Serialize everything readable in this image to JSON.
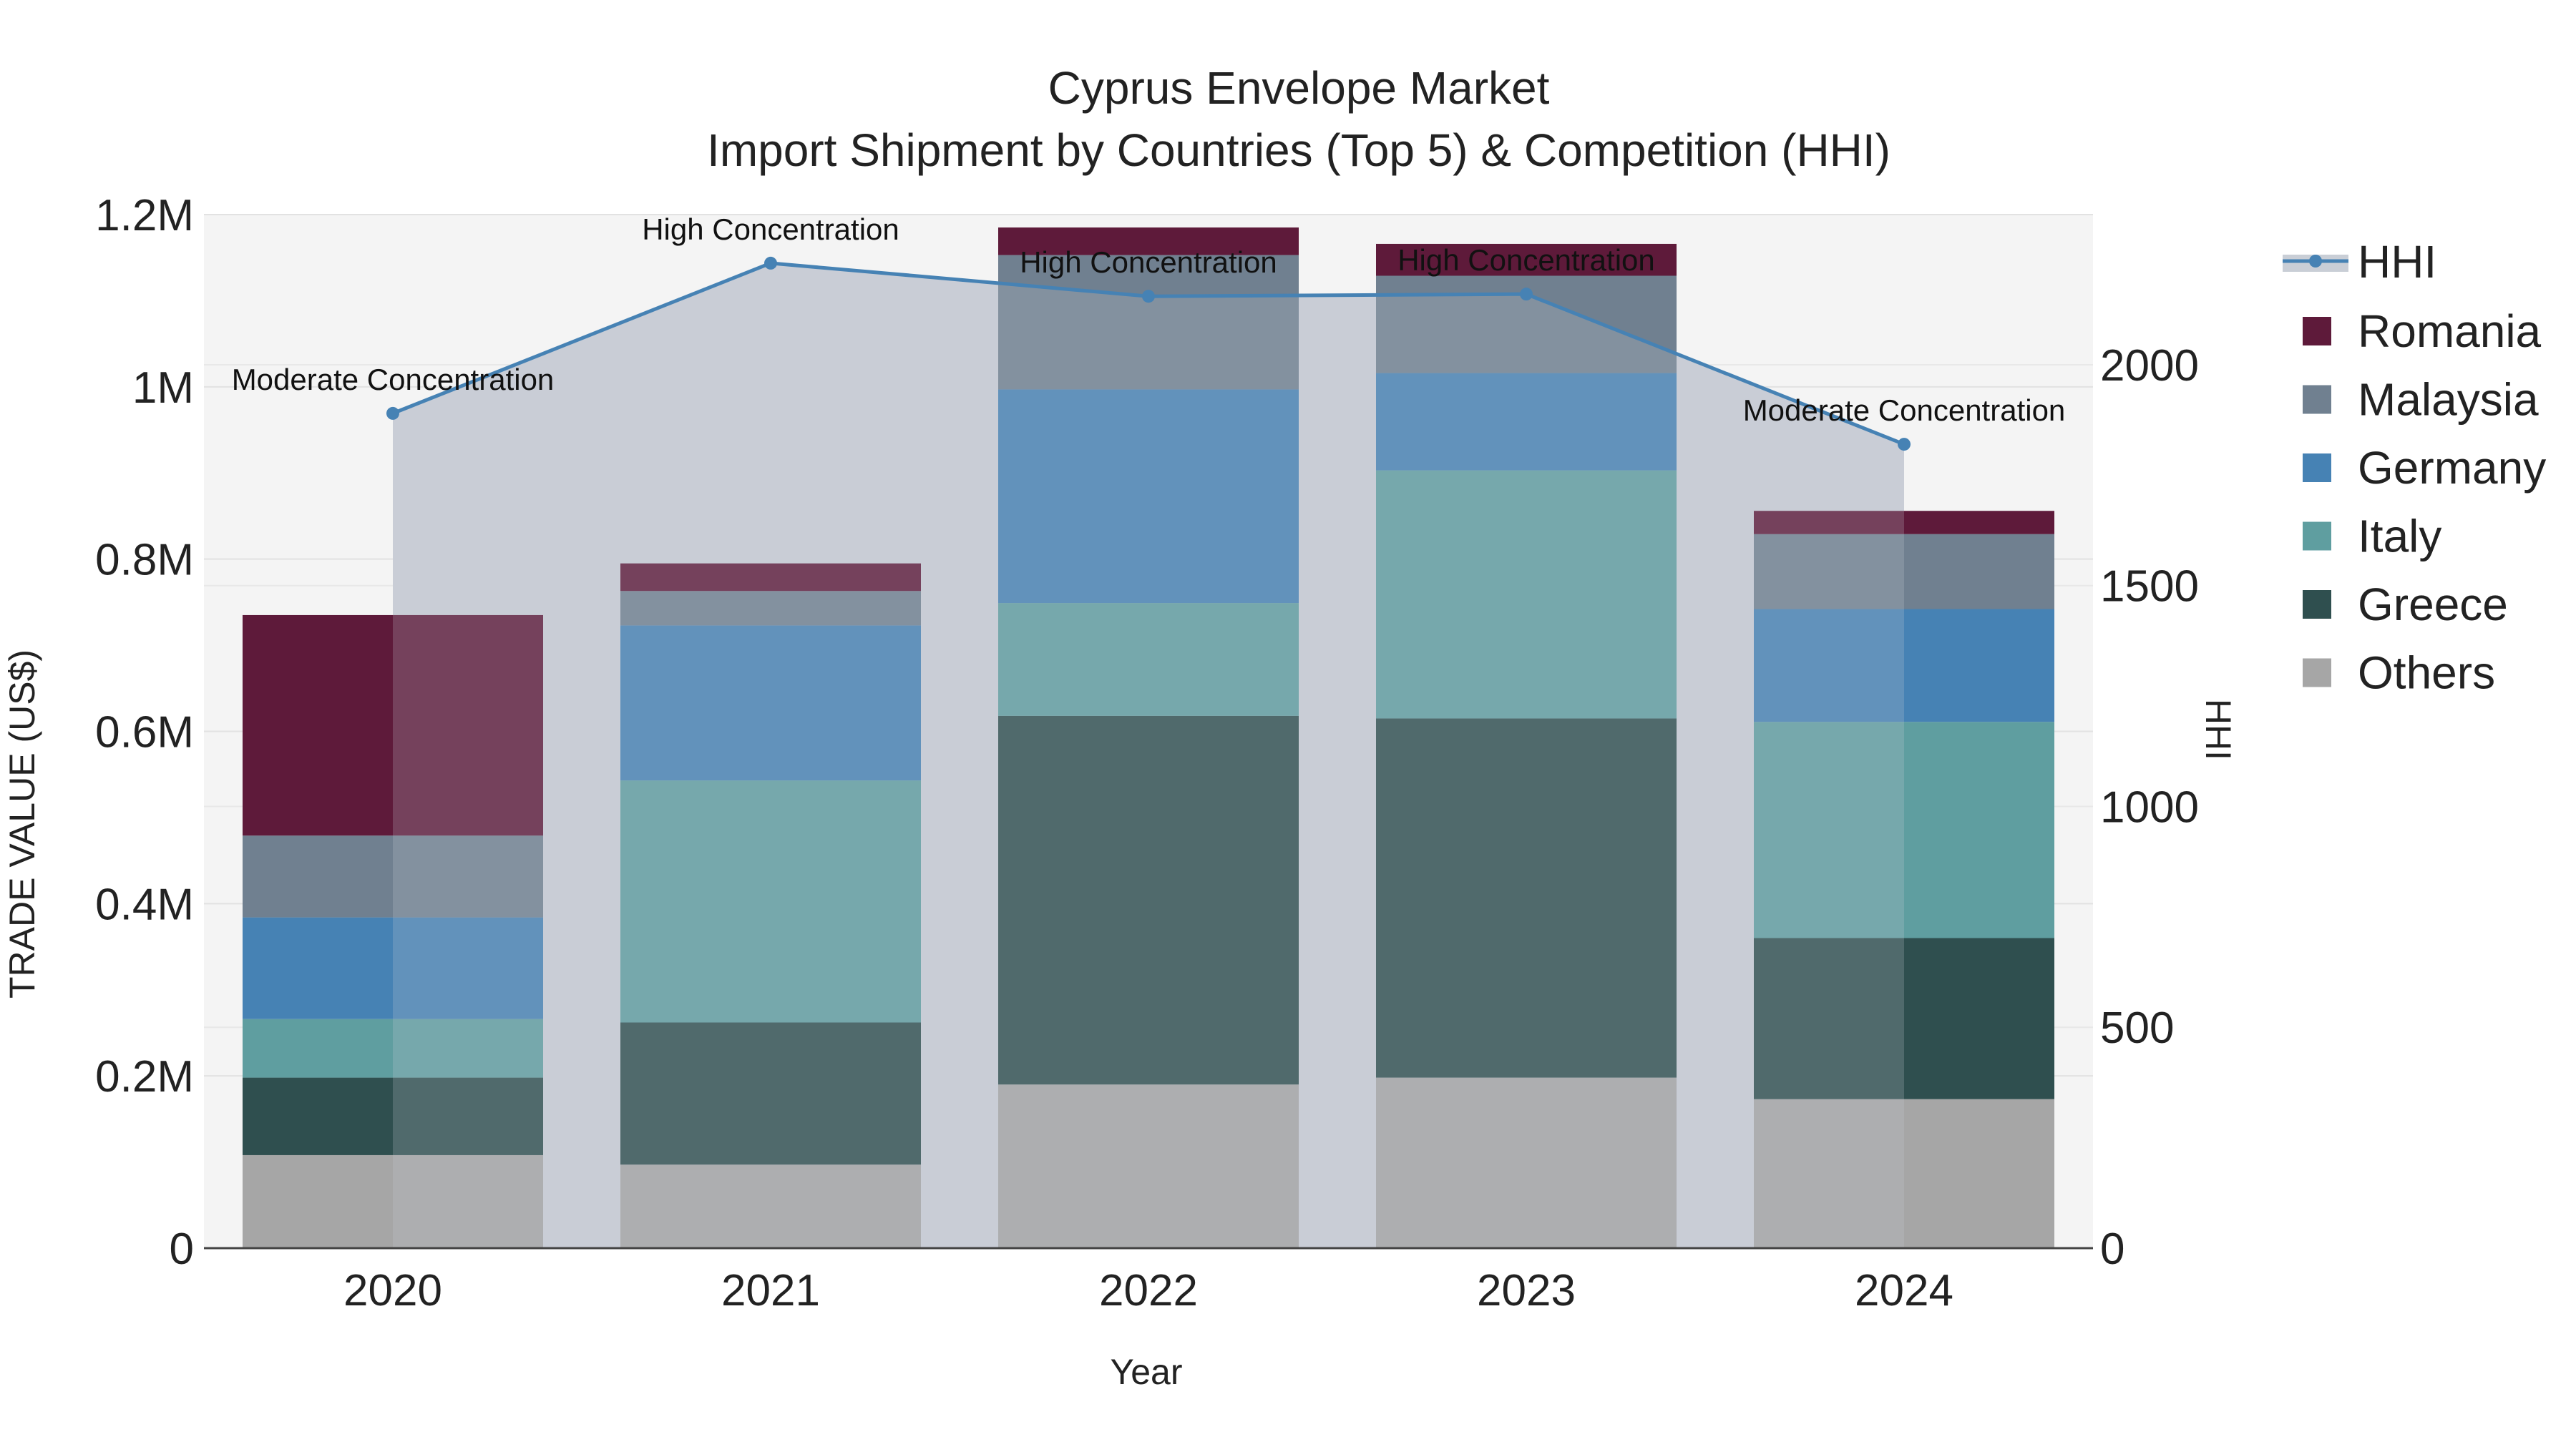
{
  "chart_data": {
    "type": "bar",
    "title": "Cyprus Envelope Market",
    "subtitle": "Import Shipment by Countries (Top 5) & Competition (HHI)",
    "xlabel": "Year",
    "ylabel": "TRADE VALUE (US$)",
    "y2label": "HHI",
    "categories": [
      "2020",
      "2021",
      "2022",
      "2023",
      "2024"
    ],
    "ylim": [
      0,
      1200000
    ],
    "y2lim": [
      0,
      2340
    ],
    "yticks": [
      "0",
      "0.2M",
      "0.4M",
      "0.6M",
      "0.8M",
      "1M",
      "1.2M"
    ],
    "y2ticks": [
      "0",
      "500",
      "1000",
      "1500",
      "2000"
    ],
    "grid": true,
    "legend_position": "right",
    "series": [
      {
        "name": "Others",
        "color": "#a6a6a6",
        "values": [
          108000,
          97000,
          190000,
          198000,
          173000
        ]
      },
      {
        "name": "Greece",
        "color": "#2f4f4f",
        "values": [
          90000,
          165000,
          428000,
          417000,
          187000
        ]
      },
      {
        "name": "Italy",
        "color": "#5f9ea0",
        "values": [
          68000,
          281000,
          131000,
          288000,
          251000
        ]
      },
      {
        "name": "Germany",
        "color": "#4682b4",
        "values": [
          118000,
          180000,
          248000,
          113000,
          131000
        ]
      },
      {
        "name": "Malaysia",
        "color": "#708090",
        "values": [
          95000,
          40000,
          156000,
          113000,
          87000
        ]
      },
      {
        "name": "Romania",
        "color": "#5e1a3a",
        "values": [
          256000,
          32000,
          32000,
          37000,
          27000
        ]
      }
    ],
    "hhi": {
      "name": "HHI",
      "color": "#4682b4",
      "values": [
        1890,
        2230,
        2155,
        2160,
        1820
      ],
      "annotations": [
        "Moderate Concentration",
        "High Concentration",
        "High Concentration",
        "High Concentration",
        "Moderate Concentration"
      ]
    }
  }
}
